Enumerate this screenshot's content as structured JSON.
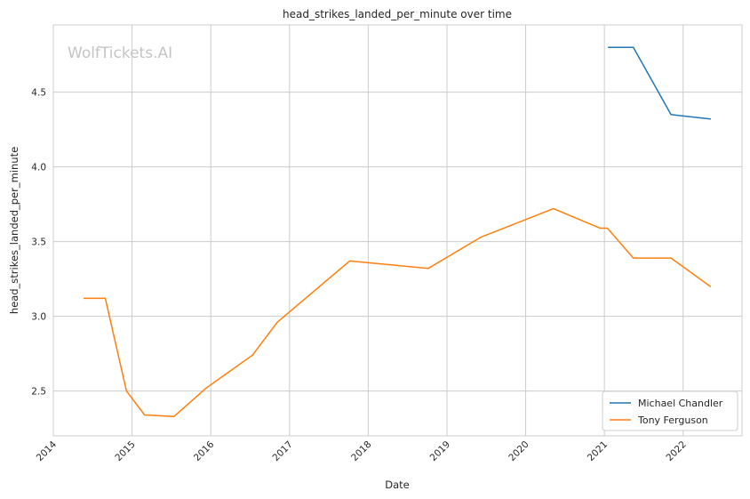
{
  "chart_data": {
    "type": "line",
    "title": "head_strikes_landed_per_minute over time",
    "xlabel": "Date",
    "ylabel": "head_strikes_landed_per_minute",
    "watermark": "WolfTickets.AI",
    "x_ticks": [
      "2014",
      "2015",
      "2016",
      "2017",
      "2018",
      "2019",
      "2020",
      "2021",
      "2022"
    ],
    "y_ticks": [
      "2.5",
      "3.0",
      "3.5",
      "4.0",
      "4.5"
    ],
    "xlim": [
      "2014-01-01",
      "2022-10-01"
    ],
    "ylim": [
      2.2,
      4.95
    ],
    "grid": true,
    "legend_position": "bottom-right",
    "series": [
      {
        "name": "Michael Chandler",
        "color": "#1f77b4",
        "points": [
          [
            "2021-01-20",
            4.8
          ],
          [
            "2021-05-15",
            4.8
          ],
          [
            "2021-11-06",
            4.35
          ],
          [
            "2022-05-07",
            4.32
          ]
        ]
      },
      {
        "name": "Tony Ferguson",
        "color": "#ff7f0e",
        "points": [
          [
            "2014-05-24",
            3.12
          ],
          [
            "2014-08-30",
            3.12
          ],
          [
            "2014-12-06",
            2.5
          ],
          [
            "2015-02-28",
            2.34
          ],
          [
            "2015-07-15",
            2.33
          ],
          [
            "2015-12-11",
            2.52
          ],
          [
            "2016-07-13",
            2.74
          ],
          [
            "2016-11-05",
            2.96
          ],
          [
            "2017-10-07",
            3.37
          ],
          [
            "2018-10-06",
            3.32
          ],
          [
            "2019-06-08",
            3.53
          ],
          [
            "2020-05-09",
            3.72
          ],
          [
            "2020-12-12",
            3.59
          ],
          [
            "2021-01-15",
            3.59
          ],
          [
            "2021-05-15",
            3.39
          ],
          [
            "2021-11-06",
            3.39
          ],
          [
            "2022-05-07",
            3.2
          ]
        ]
      }
    ]
  }
}
